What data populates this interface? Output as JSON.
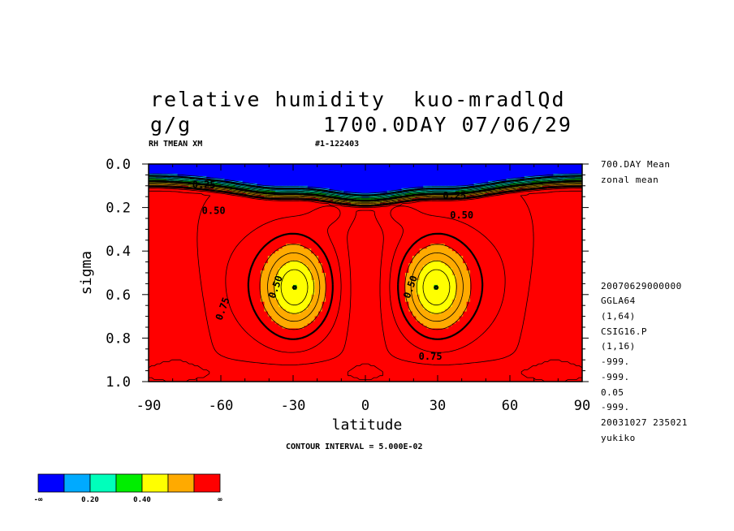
{
  "header": {
    "title": "relative humidity  kuo-mradlQd",
    "units": "g/g",
    "time_label": "1700.0DAY 07/06/29",
    "var_label": "RH TMEAN XM",
    "run_id": "#1-122403"
  },
  "side_info": [
    "700.DAY Mean",
    "zonal mean",
    "20070629000000",
    "GGLA64",
    "(1,64)",
    "CSIG16.P",
    "(1,16)",
    "-999.",
    "-999.",
    "0.05",
    "-999.",
    "20031027 235021",
    "yukiko"
  ],
  "footer": {
    "contour_interval": "CONTOUR INTERVAL = 5.000E-02"
  },
  "colors": {
    "levels": [
      "#0000ff",
      "#00aaff",
      "#00ffbb",
      "#00ee00",
      "#ffff00",
      "#ffaa00",
      "#ff0000"
    ],
    "line": "#000000"
  },
  "chart_data": {
    "type": "heatmap",
    "title": "relative humidity  kuo-mradlQd",
    "xlabel": "latitude",
    "ylabel": "sigma",
    "xlim": [
      -90,
      90
    ],
    "ylim": [
      0.0,
      1.0
    ],
    "y_inverted": true,
    "x_ticks": [
      "-90",
      "-60",
      "-30",
      "0",
      "30",
      "60",
      "90"
    ],
    "x_tick_values": [
      -90,
      -60,
      -30,
      0,
      30,
      60,
      90
    ],
    "y_ticks": [
      "0.0",
      "0.2",
      "0.4",
      "0.6",
      "0.8",
      "1.0"
    ],
    "y_tick_values": [
      0.0,
      0.2,
      0.4,
      0.6,
      0.8,
      1.0
    ],
    "contour_interval": 0.05,
    "contour_labels": [
      {
        "text": "0.25",
        "lat": -67,
        "sigma": 0.11
      },
      {
        "text": "0.50",
        "lat": -63,
        "sigma": 0.23
      },
      {
        "text": "0.25",
        "lat": 37,
        "sigma": 0.16
      },
      {
        "text": "0.50",
        "lat": 40,
        "sigma": 0.25
      },
      {
        "text": "0.50",
        "lat": -36,
        "sigma": 0.57
      },
      {
        "text": "0.50",
        "lat": 20,
        "sigma": 0.57
      },
      {
        "text": "0.75",
        "lat": -58,
        "sigma": 0.67
      },
      {
        "text": "0.75",
        "lat": 27,
        "sigma": 0.9
      }
    ],
    "colorbar": {
      "labels": [
        "-∞",
        "0.20",
        "0.40",
        "∞"
      ],
      "boundaries": [
        0.2,
        0.3,
        0.4,
        0.5,
        0.6,
        0.7
      ],
      "colors": [
        "#0000ff",
        "#00aaff",
        "#00ffbb",
        "#00ee00",
        "#ffff00",
        "#ffaa00",
        "#ff0000"
      ]
    }
  }
}
